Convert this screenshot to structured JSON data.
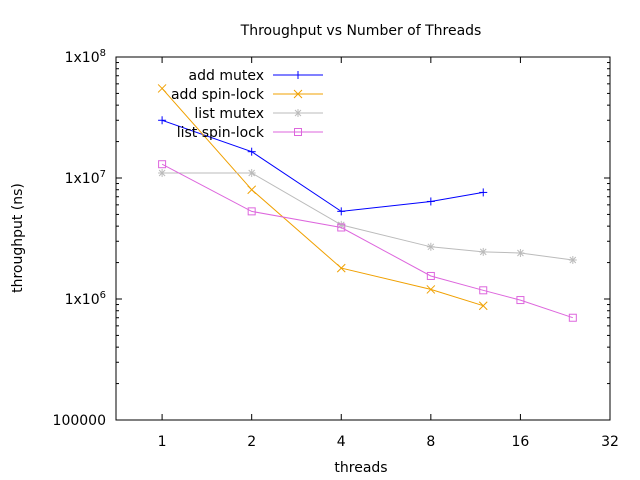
{
  "chart_data": {
    "type": "line",
    "title": "Throughput vs Number of Threads",
    "xlabel": "threads",
    "ylabel": "throughput (ns)",
    "x_scale": "log2",
    "y_scale": "log10",
    "xlim": [
      0.7,
      32
    ],
    "ylim": [
      100000,
      100000000
    ],
    "grid": false,
    "legend_position": "top-left",
    "x_ticks": [
      {
        "value": 1,
        "label": "1"
      },
      {
        "value": 2,
        "label": "2"
      },
      {
        "value": 4,
        "label": "4"
      },
      {
        "value": 8,
        "label": "8"
      },
      {
        "value": 16,
        "label": "16"
      },
      {
        "value": 32,
        "label": "32"
      }
    ],
    "y_ticks": [
      {
        "value": 100000,
        "label": "100000"
      },
      {
        "value": 1000000,
        "label": "1x10",
        "exp": "6"
      },
      {
        "value": 10000000,
        "label": "1x10",
        "exp": "7"
      },
      {
        "value": 100000000,
        "label": "1x10",
        "exp": "8"
      }
    ],
    "series": [
      {
        "name": "add mutex",
        "color": "#0000ff",
        "marker": "plus",
        "x": [
          1,
          2,
          4,
          8,
          12
        ],
        "y": [
          30000000,
          16500000,
          5300000,
          6400000,
          7600000
        ]
      },
      {
        "name": "add spin-lock",
        "color": "#f0a000",
        "marker": "cross",
        "x": [
          1,
          2,
          4,
          8,
          12
        ],
        "y": [
          55000000,
          8000000,
          1800000,
          1200000,
          880000
        ]
      },
      {
        "name": "list mutex",
        "color": "#bbbbbb",
        "marker": "star",
        "x": [
          1,
          2,
          4,
          8,
          12,
          16,
          24
        ],
        "y": [
          11000000,
          11000000,
          4100000,
          2700000,
          2450000,
          2400000,
          2100000
        ]
      },
      {
        "name": "list spin-lock",
        "color": "#dd66dd",
        "marker": "square",
        "x": [
          1,
          2,
          4,
          8,
          12,
          16,
          24
        ],
        "y": [
          13000000,
          5300000,
          3900000,
          1550000,
          1180000,
          980000,
          700000
        ]
      }
    ]
  }
}
